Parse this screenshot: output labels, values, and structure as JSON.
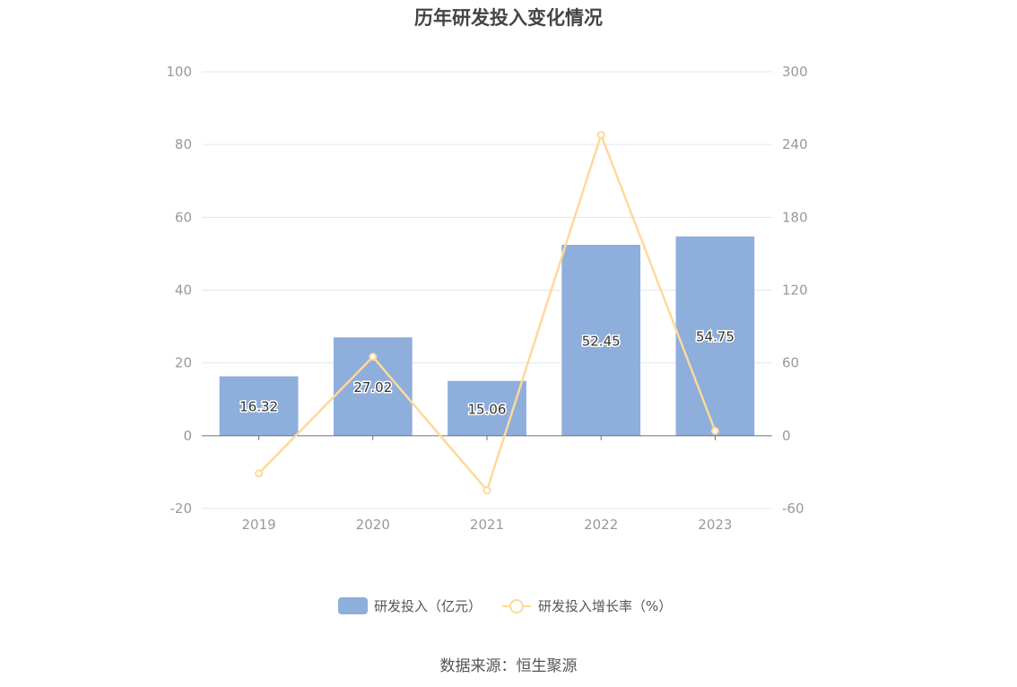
{
  "chart_data": {
    "type": "bar",
    "title": "历年研发投入变化情况",
    "categories": [
      "2019",
      "2020",
      "2021",
      "2022",
      "2023"
    ],
    "series": [
      {
        "name": "研发投入（亿元）",
        "type": "bar",
        "axis": "left",
        "color": "#8eaedb",
        "values": [
          16.32,
          27.02,
          15.06,
          52.45,
          54.75
        ],
        "value_labels": [
          "16.32",
          "27.02",
          "15.06",
          "52.45",
          "54.75"
        ]
      },
      {
        "name": "研发投入增长率（%）",
        "type": "line",
        "axis": "right",
        "color": "#fdd99a",
        "values": [
          -31,
          65,
          -45,
          248,
          4
        ]
      }
    ],
    "left_axis": {
      "ylim": [
        -20,
        100
      ],
      "ticks": [
        "-20",
        "0",
        "20",
        "40",
        "60",
        "80",
        "100"
      ]
    },
    "right_axis": {
      "ylim": [
        -60,
        300
      ],
      "ticks": [
        "-60",
        "0",
        "60",
        "120",
        "180",
        "240",
        "300"
      ]
    },
    "grid": true,
    "legend_position": "bottom",
    "source": "数据来源：恒生聚源"
  }
}
